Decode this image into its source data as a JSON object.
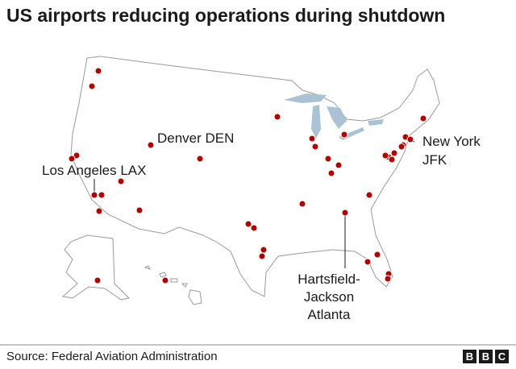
{
  "header": {
    "title": "US airports reducing operations during shutdown"
  },
  "labels": {
    "denver": "Denver DEN",
    "lax": "Los Angeles LAX",
    "jfk": [
      "New York",
      "JFK"
    ],
    "atlanta": [
      "Hartsfield-",
      "Jackson",
      "Atlanta"
    ]
  },
  "footer": {
    "source": "Source: Federal Aviation Administration",
    "logo": [
      "B",
      "B",
      "C"
    ]
  }
}
